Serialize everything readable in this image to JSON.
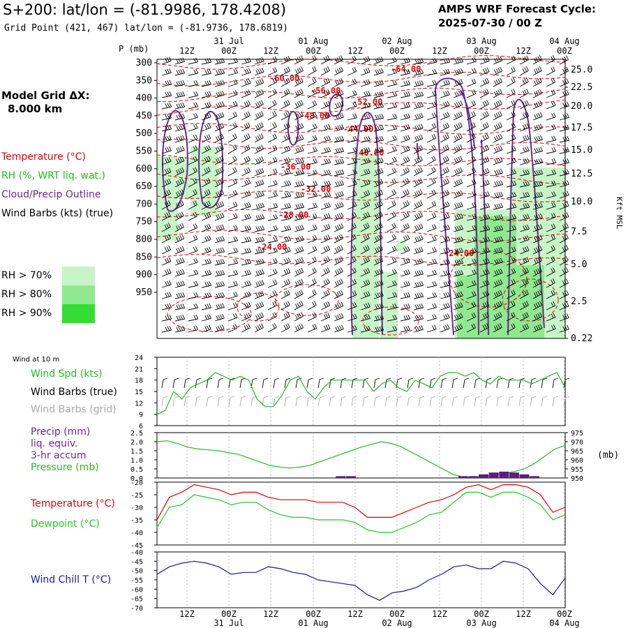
{
  "header": {
    "title": "S+200:  lat/lon = (-81.9986, 178.4208)",
    "grid_point": "Grid Point (421, 467) lat/lon = (-81.9736, 178.6819)",
    "cycle_line1": "AMPS WRF Forecast Cycle:",
    "cycle_line2": "2025-07-30 / 00  Z"
  },
  "model_grid": {
    "line1": "Model Grid ΔX:",
    "line2": "8.000 km"
  },
  "legend": {
    "temperature": "Temperature (°C)",
    "rh": "RH (%, WRT liq. wat.)",
    "cloud": "Cloud/Precip Outline",
    "wind": "Wind Barbs (kts) (true)",
    "rh70": "RH > 70%",
    "rh80": "RH > 80%",
    "rh90": "RH > 90%"
  },
  "colors": {
    "temperature": "#e00000",
    "rh70": "#c8f5c8",
    "rh80": "#90e890",
    "rh90": "#33dd33",
    "cloud": "#6a2a90",
    "wind_speed": "#22bb22",
    "pressure": "#22bb22",
    "precip": "#5a1e82",
    "dewpoint": "#22cc22",
    "wind_chill": "#1818a0",
    "grid_barb": "#aaaaaa"
  },
  "time_axis": {
    "ticks": [
      "12Z",
      "00Z",
      "12Z",
      "00Z",
      "12Z",
      "00Z",
      "12Z",
      "00Z",
      "12Z",
      "00Z"
    ],
    "dates": [
      "31 Jul",
      "01 Aug",
      "02 Aug",
      "03 Aug",
      "04 Aug"
    ]
  },
  "chart_data": [
    {
      "type": "heatmap",
      "name": "cross-section",
      "y_title": "P (mb)",
      "y_right_title": "Kft MSL",
      "pressure_ticks": [
        "300",
        "350",
        "400",
        "450",
        "500",
        "550",
        "600",
        "650",
        "700",
        "750",
        "800",
        "850",
        "900",
        "950"
      ],
      "height_ticks": [
        "25.0",
        "22.5",
        "20.0",
        "17.5",
        "15.0",
        "12.5",
        "10.0",
        "7.5",
        "5.0",
        "2.5",
        "0.22"
      ],
      "temperature_contours": [
        {
          "label": "-64.00",
          "value": -64
        },
        {
          "label": "-60.00",
          "value": -60
        },
        {
          "label": "-56.00",
          "value": -56
        },
        {
          "label": "-52.00",
          "value": -52
        },
        {
          "label": "-48.00",
          "value": -48
        },
        {
          "label": "-44.00",
          "value": -44
        },
        {
          "label": "-40.00",
          "value": -40
        },
        {
          "label": "-36.00",
          "value": -36
        },
        {
          "label": "-32.00",
          "value": -32
        },
        {
          "label": "-28.00",
          "value": -28
        },
        {
          "label": "-24.00",
          "value": -24
        },
        {
          "label": "-24.00",
          "value": -24
        }
      ]
    },
    {
      "type": "line",
      "name": "wind-speed-10m",
      "panel_title": "Wind at 10 m",
      "legend": [
        "Wind Spd (kts)",
        "Wind Barbs (true)",
        "Wind Barbs (grid)"
      ],
      "ylim": [
        6,
        24
      ],
      "yticks": [
        "24",
        "21",
        "18",
        "15",
        "12",
        "9",
        "6"
      ],
      "series": [
        {
          "name": "Wind Spd (kts)",
          "values": [
            9,
            10,
            15,
            13,
            16,
            17,
            18,
            20,
            19,
            18,
            19,
            18,
            13,
            11,
            11,
            14,
            18,
            19,
            15,
            13,
            16,
            18,
            18,
            18,
            18,
            18,
            15,
            17,
            18,
            16,
            15,
            18,
            17,
            16,
            19,
            20,
            20,
            19,
            20,
            18,
            17,
            19,
            18,
            18,
            18,
            17,
            18,
            19,
            20,
            16
          ]
        }
      ]
    },
    {
      "type": "line",
      "name": "precip-pressure",
      "legend": [
        "Precip (mm)",
        "liq. equiv.",
        "3-hr accum",
        "Pressure (mb)"
      ],
      "ylim_left": [
        0,
        2.5
      ],
      "yticks_left": [
        "2.5",
        "2.0",
        "1.5",
        "1.0",
        "0.5",
        "0.0"
      ],
      "ylim_right": [
        950,
        975
      ],
      "yticks_right": [
        "975",
        "970",
        "965",
        "960",
        "955",
        "950"
      ],
      "right_unit": "(mb)",
      "series": [
        {
          "name": "Pressure (mb)",
          "values": [
            970,
            970.5,
            969,
            967,
            966,
            965.5,
            965,
            964,
            963,
            961,
            959,
            957,
            956,
            955.5,
            956,
            957,
            959,
            961,
            963,
            965,
            967,
            968.5,
            970,
            969,
            967,
            964,
            961,
            958,
            955,
            952,
            950.5,
            950.2,
            950.5,
            951.5,
            952.5,
            953.5,
            955,
            958,
            962,
            966,
            968
          ]
        },
        {
          "name": "Precip (mm)",
          "values": [
            0,
            0,
            0,
            0,
            0,
            0,
            0,
            0,
            0,
            0,
            0,
            0,
            0,
            0,
            0,
            0,
            0,
            0,
            0.1,
            0.1,
            0,
            0,
            0,
            0,
            0,
            0,
            0,
            0,
            0,
            0,
            0.1,
            0.1,
            0.2,
            0.3,
            0.35,
            0.3,
            0.2,
            0.1,
            0,
            0,
            0
          ]
        }
      ]
    },
    {
      "type": "line",
      "name": "temperature-dewpoint",
      "legend": [
        "Temperature (°C)",
        "Dewpoint (°C)"
      ],
      "ylim": [
        -45,
        -20
      ],
      "yticks": [
        "-20",
        "-25",
        "-30",
        "-35",
        "-40",
        "-45"
      ],
      "series": [
        {
          "name": "Temperature (°C)",
          "values": [
            -35,
            -26,
            -24,
            -21,
            -22,
            -23,
            -25,
            -24,
            -24,
            -26,
            -27,
            -27,
            -27,
            -28,
            -28,
            -28,
            -30,
            -34,
            -34,
            -34,
            -32,
            -30,
            -28,
            -27,
            -25,
            -22,
            -21,
            -23,
            -21,
            -21,
            -22,
            -25,
            -32,
            -30
          ]
        },
        {
          "name": "Dewpoint (°C)",
          "values": [
            -38,
            -30,
            -29,
            -25,
            -26,
            -27,
            -29,
            -28,
            -28,
            -31,
            -33,
            -34,
            -34,
            -35,
            -35,
            -35,
            -36,
            -39,
            -40,
            -40,
            -38,
            -36,
            -33,
            -32,
            -28,
            -24,
            -24,
            -26,
            -24,
            -24,
            -26,
            -29,
            -35,
            -33
          ]
        }
      ]
    },
    {
      "type": "line",
      "name": "wind-chill",
      "legend": [
        "Wind Chill T (°C)"
      ],
      "ylim": [
        -70,
        -40
      ],
      "yticks": [
        "-40",
        "-45",
        "-50",
        "-55",
        "-60",
        "-65",
        "-70"
      ],
      "series": [
        {
          "name": "Wind Chill T (°C)",
          "values": [
            -52,
            -48,
            -46,
            -45,
            -46,
            -48,
            -52,
            -51,
            -51,
            -48,
            -49,
            -51,
            -52,
            -55,
            -56,
            -57,
            -58,
            -63,
            -66,
            -62,
            -61,
            -59,
            -55,
            -52,
            -48,
            -47,
            -49,
            -49,
            -45,
            -46,
            -49,
            -57,
            -63,
            -54
          ]
        }
      ]
    }
  ]
}
